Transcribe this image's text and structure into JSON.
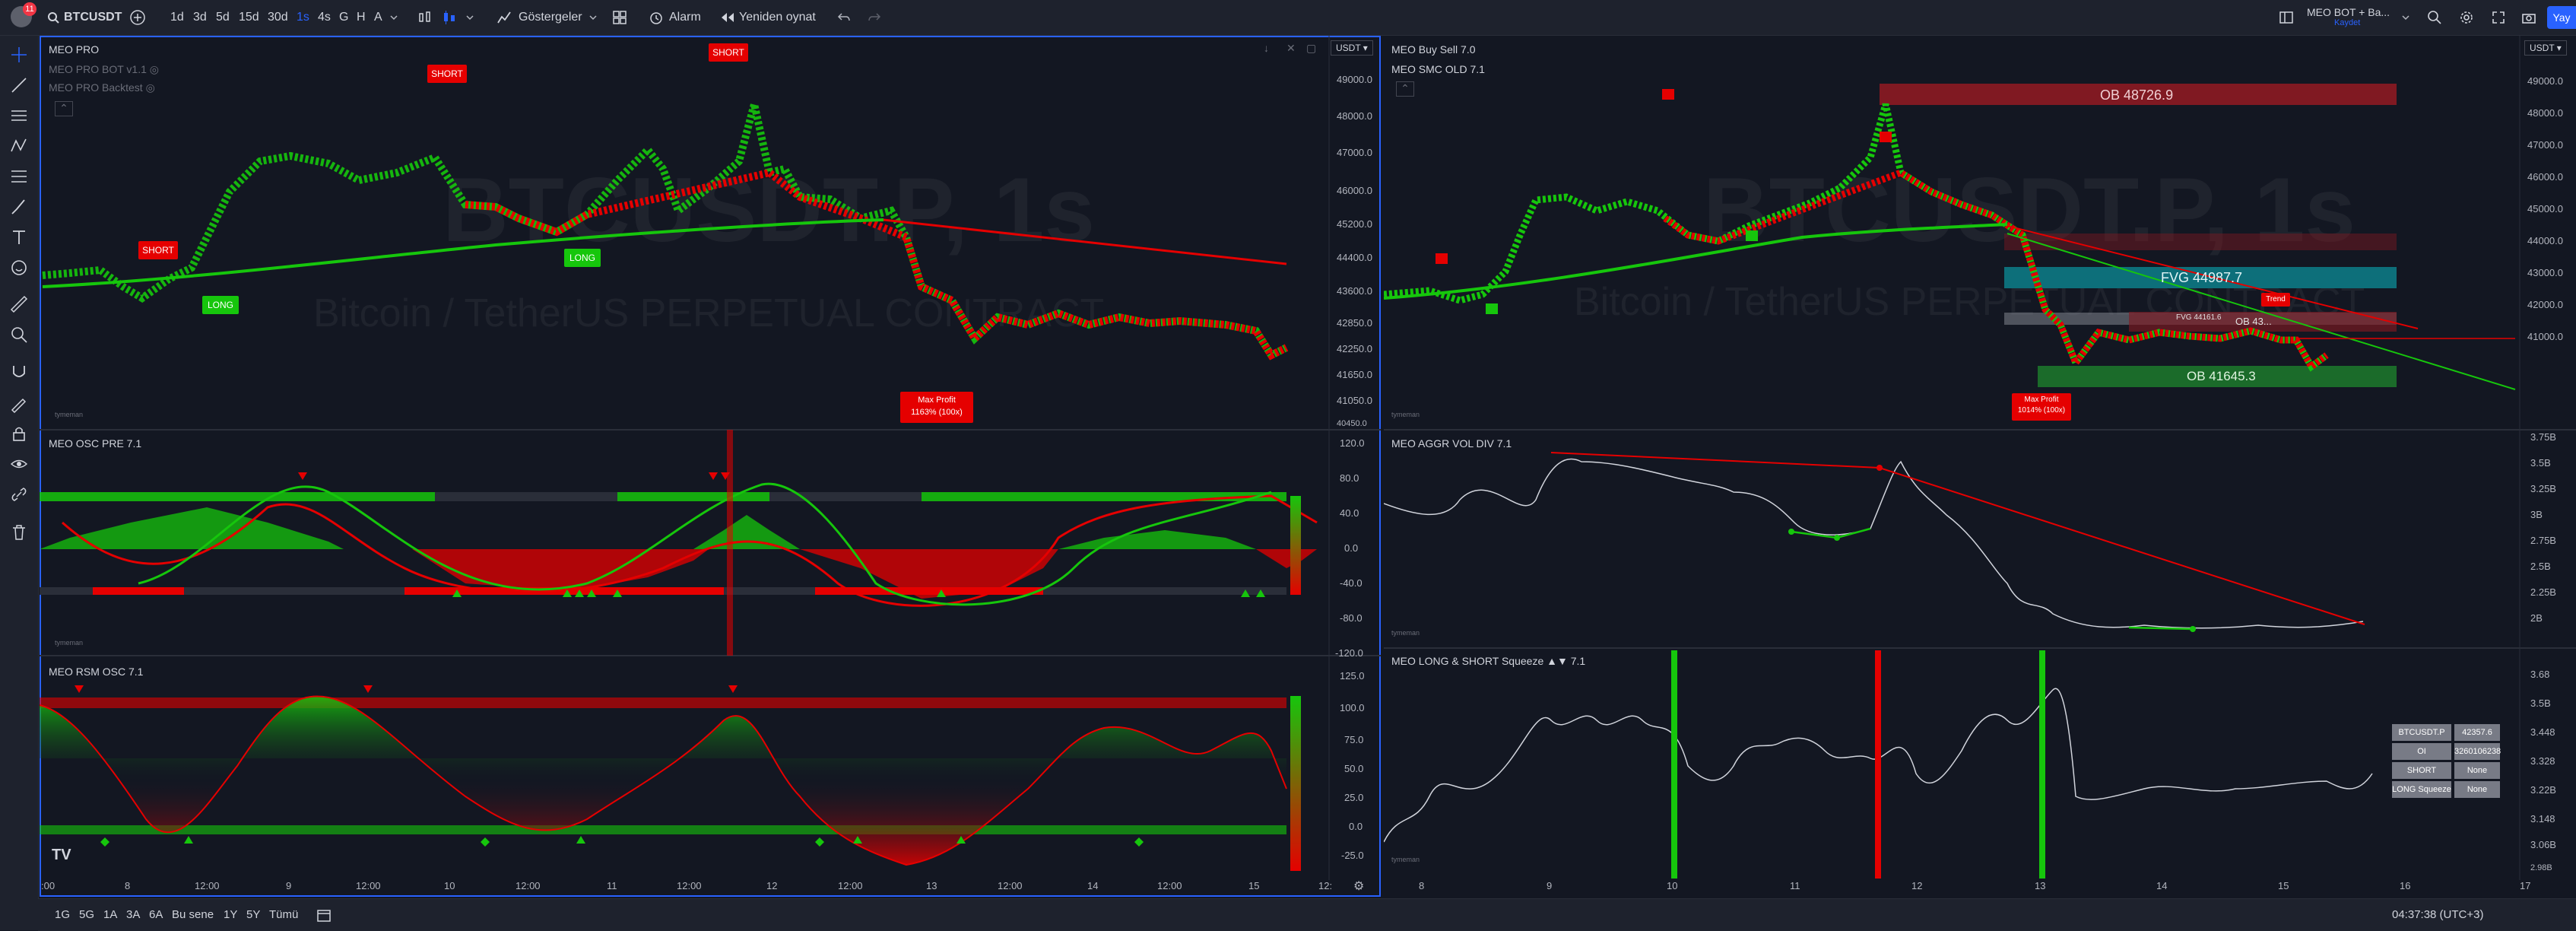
{
  "topbar": {
    "notif_count": "11",
    "symbol": "BTCUSDT",
    "intervals": [
      "1d",
      "3d",
      "5d",
      "15d",
      "30d",
      "1s",
      "4s",
      "G",
      "H",
      "A"
    ],
    "active_interval": "1s",
    "indicators_label": "Göstergeler",
    "alarm_label": "Alarm",
    "replay_label": "Yeniden oynat",
    "layout_name": "MEO BOT + Ba...",
    "layout_status": "Kaydet",
    "publish_label": "Yay"
  },
  "left_chart": {
    "currency": "USDT",
    "indicators": {
      "main": "MEO PRO",
      "bot": "MEO PRO BOT v1.1",
      "backtest": "MEO PRO Backtest",
      "osc": "MEO OSC PRE 7.1",
      "rsm": "MEO RSM OSC 7.1"
    },
    "price_axis": [
      "49000.0",
      "48000.0",
      "47000.0",
      "46000.0",
      "45200.0",
      "44400.0",
      "43600.0",
      "42850.0",
      "42250.0",
      "41650.0",
      "41050.0",
      "40450.0"
    ],
    "osc_axis": [
      "120.0",
      "80.0",
      "40.0",
      "0.0",
      "-40.0",
      "-80.0",
      "-120.0"
    ],
    "rsm_axis": [
      "125.0",
      "100.0",
      "75.0",
      "50.0",
      "25.0",
      "0.0",
      "-25.0"
    ],
    "time_axis": [
      ":00",
      "8",
      "12:00",
      "9",
      "12:00",
      "10",
      "12:00",
      "11",
      "12:00",
      "12",
      "12:00",
      "13",
      "12:00",
      "14",
      "12:00",
      "15",
      "12:"
    ],
    "signals": {
      "short": "SHORT",
      "long": "LONG"
    },
    "max_profit": [
      "Max Profit",
      "1163% (100x)"
    ],
    "watermark": "BTCUSDT.P, 1s",
    "watermark_sub": "Bitcoin / TetherUS PERPETUAL CONTRACT"
  },
  "right_chart": {
    "currency": "USDT",
    "indicators": {
      "buysell": "MEO Buy Sell 7.0",
      "smc": "MEO SMC OLD 7.1",
      "aggr": "MEO AGGR VOL DIV 7.1",
      "squeeze": "MEO LONG & SHORT Squeeze ▲▼ 7.1"
    },
    "price_axis": [
      "49000.0",
      "48000.0",
      "47000.0",
      "46000.0",
      "45000.0",
      "44000.0",
      "43000.0",
      "42000.0",
      "41000.0"
    ],
    "aggr_axis": [
      "3.75B",
      "3.5B",
      "3.25B",
      "3B",
      "2.75B",
      "2.5B",
      "2.25B",
      "2B"
    ],
    "squeeze_axis": [
      "3.68",
      "3.5B",
      "3.448",
      "3.328",
      "3.22B",
      "3.148",
      "3.06B",
      "2.98B"
    ],
    "time_axis": [
      "8",
      "9",
      "10",
      "11",
      "12",
      "13",
      "14",
      "15",
      "16",
      "17"
    ],
    "zones": {
      "ob_top": "OB 48726.9",
      "fvg": "FVG 44987.7",
      "fvg_small": "FVG 44161.6",
      "ob_mid": "OB 43...",
      "ob_bottom": "OB 41645.3",
      "trend": "Trend"
    },
    "max_profit": [
      "Max Profit",
      "1014% (100x)"
    ],
    "watermark": "BTCUSDT.P, 1s",
    "watermark_sub": "Bitcoin / TetherUS PERPETUAL CONTRACT",
    "squeeze_table": [
      [
        "BTCUSDT.P",
        "42357.6"
      ],
      [
        "OI",
        "3260106238"
      ],
      [
        "SHORT Squeeze",
        "None"
      ],
      [
        "LONG Squeeze",
        "None"
      ]
    ]
  },
  "bottombar": {
    "ranges": [
      "1G",
      "5G",
      "1A",
      "3A",
      "6A",
      "Bu sene",
      "1Y",
      "5Y",
      "Tümü"
    ],
    "clock": "04:37:38 (UTC+3)"
  },
  "credit": "tymeman",
  "colors": {
    "bull": "#16c60c",
    "bear": "#e50000",
    "bg": "#131722",
    "accent": "#2962ff"
  }
}
